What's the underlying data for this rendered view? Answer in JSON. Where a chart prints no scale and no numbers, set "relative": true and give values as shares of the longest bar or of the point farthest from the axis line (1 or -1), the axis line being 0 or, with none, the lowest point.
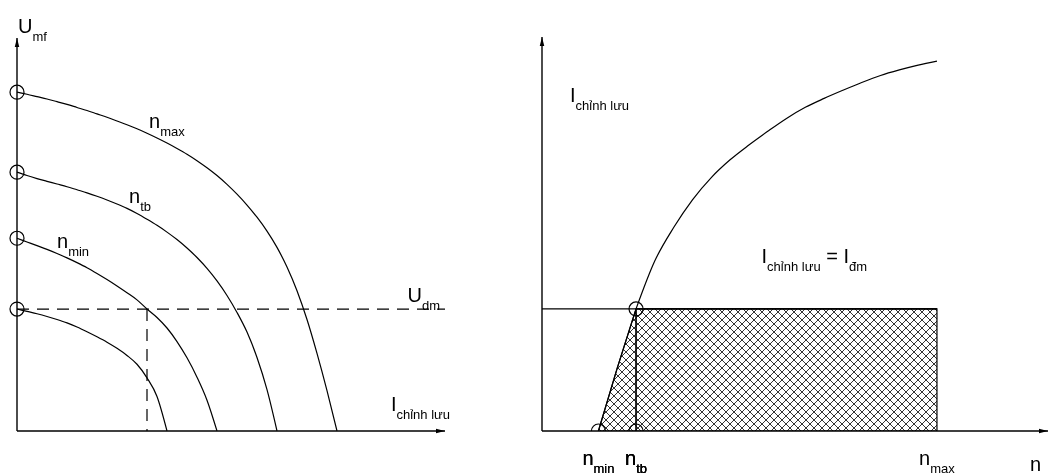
{
  "chart_data": [
    {
      "type": "line",
      "relative": true,
      "tick_labels": false,
      "ylabel": "U$_{mf}$",
      "xlabel": "I$_{chỉnh lưu}$",
      "categories": [
        null,
        null,
        null,
        null,
        null,
        null,
        null,
        null,
        null,
        null,
        null,
        null,
        null,
        null,
        null,
        null,
        null,
        null,
        null,
        null,
        null,
        null,
        null,
        null,
        null,
        null,
        null,
        null,
        null,
        null,
        null,
        null,
        null,
        null,
        null,
        null,
        null,
        null,
        null,
        null,
        null,
        null,
        null
      ],
      "series": [
        {
          "name": "n$_{max}$",
          "color": "#000000",
          "values": [
            1,
            0.994,
            0.987,
            0.98,
            0.972,
            0.964,
            0.955,
            0.946,
            0.936,
            0.926,
            0.915,
            0.904,
            0.892,
            0.879,
            0.865,
            0.85,
            0.834,
            0.817,
            0.798,
            0.777,
            0.754,
            0.728,
            0.699,
            0.667,
            0.631,
            0.59,
            0.542,
            0.484,
            0.414,
            0.329,
            0.229,
            0.119,
            0,
            null,
            null,
            null,
            null,
            null,
            null,
            null,
            null,
            null,
            null
          ]
        },
        {
          "name": "n$_{tb}$",
          "color": "#000000",
          "values": [
            0.764,
            0.754,
            0.745,
            0.737,
            0.729,
            0.721,
            0.712,
            0.703,
            0.693,
            0.682,
            0.67,
            0.657,
            0.642,
            0.625,
            0.607,
            0.587,
            0.565,
            0.54,
            0.512,
            0.48,
            0.443,
            0.4,
            0.35,
            0.292,
            0.217,
            0.122,
            0,
            null,
            null,
            null,
            null,
            null,
            null,
            null,
            null,
            null,
            null,
            null,
            null,
            null,
            null,
            null,
            null
          ]
        },
        {
          "name": "n$_{min}$",
          "color": "#000000",
          "values": [
            0.569,
            0.558,
            0.547,
            0.536,
            0.524,
            0.511,
            0.497,
            0.482,
            0.465,
            0.447,
            0.428,
            0.408,
            0.387,
            0.36,
            0.335,
            0.304,
            0.264,
            0.216,
            0.159,
            0.091,
            0,
            null,
            null,
            null,
            null,
            null,
            null,
            null,
            null,
            null,
            null,
            null,
            null,
            null,
            null,
            null,
            null,
            null,
            null,
            null,
            null,
            null,
            null
          ]
        },
        {
          "color": "#000000",
          "values": [
            0.36,
            0.353,
            0.346,
            0.338,
            0.329,
            0.319,
            0.307,
            0.293,
            0.278,
            0.262,
            0.244,
            0.223,
            0.197,
            0.157,
            0.102,
            0,
            null,
            null,
            null,
            null,
            null,
            null,
            null,
            null,
            null,
            null,
            null,
            null,
            null,
            null,
            null,
            null,
            null,
            null,
            null,
            null,
            null,
            null,
            null,
            null,
            null,
            null,
            null
          ]
        }
      ],
      "ref_lines": [
        {
          "axis": "y",
          "value": 0.36,
          "label": "U$_{dm}$",
          "line_style": "dashed"
        }
      ]
    },
    {
      "type": "line",
      "relative": true,
      "tick_labels": "x",
      "ylabel": "I$_{chỉnh lưu}$",
      "xlabel": "n",
      "categories": [
        null,
        null,
        null,
        "n$_{min}$",
        null,
        "n$_{tb}$",
        null,
        null,
        null,
        null,
        null,
        null,
        null,
        null,
        null,
        null,
        null,
        null,
        null,
        null,
        null,
        "n$_{max}$",
        null,
        null,
        null,
        null,
        null
      ],
      "series": [
        {
          "color": "#000000",
          "values": [
            null,
            null,
            null,
            null,
            null,
            0.33,
            0.46,
            0.55,
            0.625,
            0.685,
            0.733,
            0.773,
            0.81,
            0.845,
            0.875,
            0.899,
            0.921,
            0.942,
            0.961,
            0.976,
            0.989,
            1,
            null,
            null,
            null,
            null,
            null
          ]
        },
        {
          "name": "I$_{chỉnh lưu}$ = I$_{đm}$",
          "color": "#000000",
          "values": [
            0.33,
            0.33,
            0.33,
            0.33,
            0.33,
            0.33,
            0.33,
            0.33,
            0.33,
            0.33,
            0.33,
            0.33,
            0.33,
            0.33,
            0.33,
            0.33,
            0.33,
            0.33,
            0.33,
            0.33,
            0.33,
            0.33,
            null,
            null,
            null,
            null,
            null
          ]
        },
        {
          "type": "area",
          "color": "#000000",
          "values": [
            null,
            null,
            null,
            0,
            0.17,
            0.33,
            null,
            null,
            null,
            null,
            null,
            null,
            null,
            null,
            null,
            null,
            null,
            null,
            null,
            null,
            null,
            null,
            null,
            null,
            null,
            null,
            null
          ]
        },
        {
          "type": "area",
          "color": "#000000",
          "values": [
            null,
            null,
            null,
            null,
            null,
            0.33,
            0.33,
            0.33,
            0.33,
            0.33,
            0.33,
            0.33,
            0.33,
            0.33,
            0.33,
            0.33,
            0.33,
            0.33,
            0.33,
            0.33,
            0.33,
            0.33,
            null,
            null,
            null,
            null,
            null
          ]
        },
        {
          "type": "scatter",
          "color": "#000000",
          "marker": "circle",
          "values": [
            null,
            null,
            null,
            0,
            null,
            0,
            null,
            null,
            null,
            null,
            null,
            null,
            null,
            null,
            null,
            null,
            null,
            null,
            null,
            null,
            null,
            null,
            null,
            null,
            null,
            null,
            null
          ]
        },
        {
          "type": "scatter",
          "color": "#000000",
          "marker": "circle",
          "values": [
            null,
            null,
            null,
            null,
            null,
            0.33,
            null,
            null,
            null,
            null,
            null,
            null,
            null,
            null,
            null,
            null,
            null,
            null,
            null,
            null,
            null,
            null,
            null,
            null,
            null,
            null,
            null
          ]
        }
      ]
    }
  ]
}
